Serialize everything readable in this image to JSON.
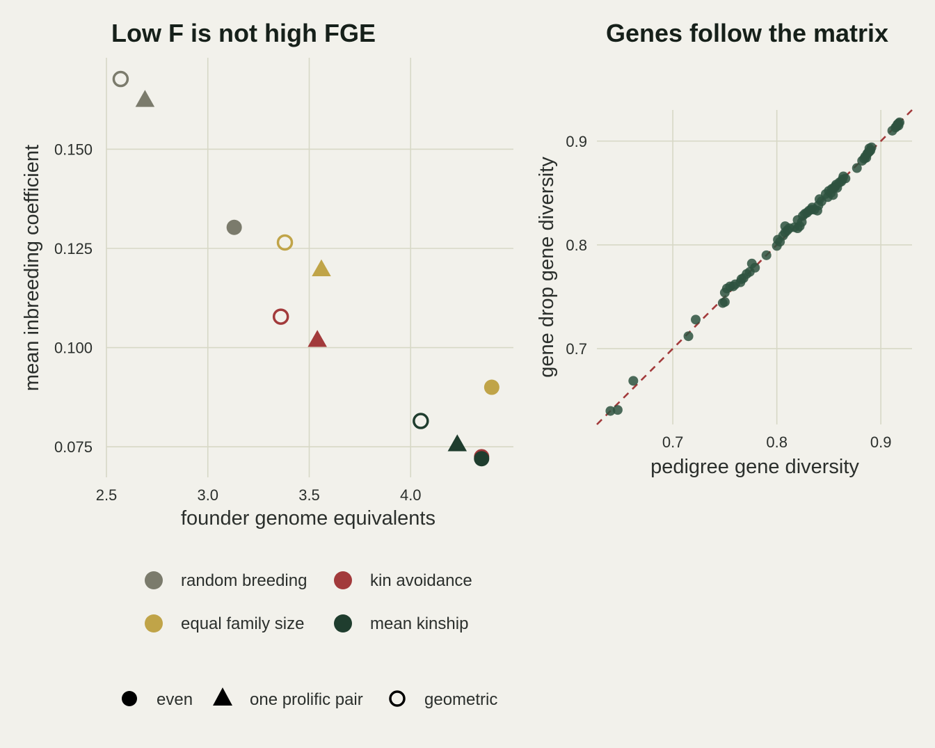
{
  "colors": {
    "background": "#f2f1eb",
    "grid": "#d7d8c6",
    "random breeding": "#7b7b6c",
    "kin avoidance": "#a23a3b",
    "equal family size": "#c0a448",
    "mean kinship": "#1f3d2e",
    "scatter_points": "#2e5240",
    "identity_line": "#a23a3b"
  },
  "chart_data": [
    {
      "type": "scatter",
      "title": "Low F is not high FGE",
      "xlabel": "founder genome equivalents",
      "ylabel": "mean inbreeding coefficient",
      "xlim": [
        2.5,
        4.5
      ],
      "ylim": [
        0.068,
        0.172
      ],
      "xticks": [
        2.5,
        3.0,
        3.5,
        4.0
      ],
      "xtick_labels": [
        "2.5",
        "3.0",
        "3.5",
        "4.0"
      ],
      "yticks": [
        0.075,
        0.1,
        0.125,
        0.15
      ],
      "ytick_labels": [
        "0.075",
        "0.100",
        "0.125",
        "0.150"
      ],
      "grid": true,
      "series": [
        {
          "strategy": "random breeding",
          "pattern": "even",
          "x": 3.13,
          "y": 0.1303
        },
        {
          "strategy": "random breeding",
          "pattern": "one prolific pair",
          "x": 2.69,
          "y": 0.1625
        },
        {
          "strategy": "random breeding",
          "pattern": "geometric",
          "x": 2.57,
          "y": 0.1677
        },
        {
          "strategy": "equal family size",
          "pattern": "even",
          "x": 4.4,
          "y": 0.09
        },
        {
          "strategy": "equal family size",
          "pattern": "one prolific pair",
          "x": 3.56,
          "y": 0.1198
        },
        {
          "strategy": "equal family size",
          "pattern": "geometric",
          "x": 3.38,
          "y": 0.1265
        },
        {
          "strategy": "kin avoidance",
          "pattern": "even",
          "x": 4.35,
          "y": 0.0725
        },
        {
          "strategy": "kin avoidance",
          "pattern": "one prolific pair",
          "x": 3.54,
          "y": 0.102
        },
        {
          "strategy": "kin avoidance",
          "pattern": "geometric",
          "x": 3.36,
          "y": 0.1078
        },
        {
          "strategy": "mean kinship",
          "pattern": "even",
          "x": 4.35,
          "y": 0.072
        },
        {
          "strategy": "mean kinship",
          "pattern": "one prolific pair",
          "x": 4.23,
          "y": 0.0757
        },
        {
          "strategy": "mean kinship",
          "pattern": "geometric",
          "x": 4.05,
          "y": 0.0815
        }
      ],
      "legend_color": {
        "placement": "bottom",
        "entries": [
          "random breeding",
          "kin avoidance",
          "equal family size",
          "mean kinship"
        ]
      },
      "legend_shape": {
        "placement": "bottom",
        "entries": [
          "even",
          "one prolific pair",
          "geometric"
        ]
      }
    },
    {
      "type": "scatter",
      "title": "Genes follow the matrix",
      "xlabel": "pedigree gene diversity",
      "ylabel": "gene drop gene diversity",
      "xlim": [
        0.627,
        0.93
      ],
      "ylim": [
        0.627,
        0.93
      ],
      "xticks": [
        0.7,
        0.8,
        0.9
      ],
      "xtick_labels": [
        "0.7",
        "0.8",
        "0.9"
      ],
      "yticks": [
        0.7,
        0.8,
        0.9
      ],
      "ytick_labels": [
        "0.7",
        "0.8",
        "0.9"
      ],
      "grid": true,
      "reference_line": "y = x, dashed",
      "points": [
        [
          0.64,
          0.64
        ],
        [
          0.647,
          0.641
        ],
        [
          0.662,
          0.669
        ],
        [
          0.715,
          0.712
        ],
        [
          0.722,
          0.728
        ],
        [
          0.748,
          0.744
        ],
        [
          0.75,
          0.745
        ],
        [
          0.75,
          0.754
        ],
        [
          0.752,
          0.758
        ],
        [
          0.755,
          0.76
        ],
        [
          0.758,
          0.76
        ],
        [
          0.76,
          0.762
        ],
        [
          0.765,
          0.764
        ],
        [
          0.766,
          0.767
        ],
        [
          0.768,
          0.768
        ],
        [
          0.771,
          0.772
        ],
        [
          0.774,
          0.774
        ],
        [
          0.776,
          0.782
        ],
        [
          0.779,
          0.778
        ],
        [
          0.79,
          0.79
        ],
        [
          0.8,
          0.799
        ],
        [
          0.801,
          0.805
        ],
        [
          0.803,
          0.803
        ],
        [
          0.806,
          0.809
        ],
        [
          0.808,
          0.812
        ],
        [
          0.81,
          0.814
        ],
        [
          0.808,
          0.818
        ],
        [
          0.812,
          0.816
        ],
        [
          0.817,
          0.817
        ],
        [
          0.82,
          0.816
        ],
        [
          0.822,
          0.818
        ],
        [
          0.82,
          0.824
        ],
        [
          0.824,
          0.822
        ],
        [
          0.825,
          0.828
        ],
        [
          0.827,
          0.83
        ],
        [
          0.829,
          0.831
        ],
        [
          0.831,
          0.833
        ],
        [
          0.833,
          0.834
        ],
        [
          0.834,
          0.836
        ],
        [
          0.836,
          0.834
        ],
        [
          0.839,
          0.833
        ],
        [
          0.84,
          0.838
        ],
        [
          0.841,
          0.844
        ],
        [
          0.843,
          0.842
        ],
        [
          0.847,
          0.849
        ],
        [
          0.849,
          0.846
        ],
        [
          0.85,
          0.852
        ],
        [
          0.852,
          0.85
        ],
        [
          0.853,
          0.854
        ],
        [
          0.854,
          0.848
        ],
        [
          0.855,
          0.855
        ],
        [
          0.856,
          0.856
        ],
        [
          0.857,
          0.858
        ],
        [
          0.858,
          0.855
        ],
        [
          0.86,
          0.86
        ],
        [
          0.862,
          0.861
        ],
        [
          0.863,
          0.863
        ],
        [
          0.864,
          0.866
        ],
        [
          0.866,
          0.864
        ],
        [
          0.877,
          0.874
        ],
        [
          0.882,
          0.881
        ],
        [
          0.884,
          0.883
        ],
        [
          0.885,
          0.885
        ],
        [
          0.886,
          0.884
        ],
        [
          0.887,
          0.888
        ],
        [
          0.888,
          0.889
        ],
        [
          0.889,
          0.89
        ],
        [
          0.889,
          0.893
        ],
        [
          0.89,
          0.891
        ],
        [
          0.891,
          0.894
        ],
        [
          0.911,
          0.91
        ],
        [
          0.914,
          0.913
        ],
        [
          0.915,
          0.914
        ],
        [
          0.916,
          0.916
        ],
        [
          0.917,
          0.917
        ],
        [
          0.917,
          0.915
        ],
        [
          0.918,
          0.918
        ]
      ]
    }
  ]
}
